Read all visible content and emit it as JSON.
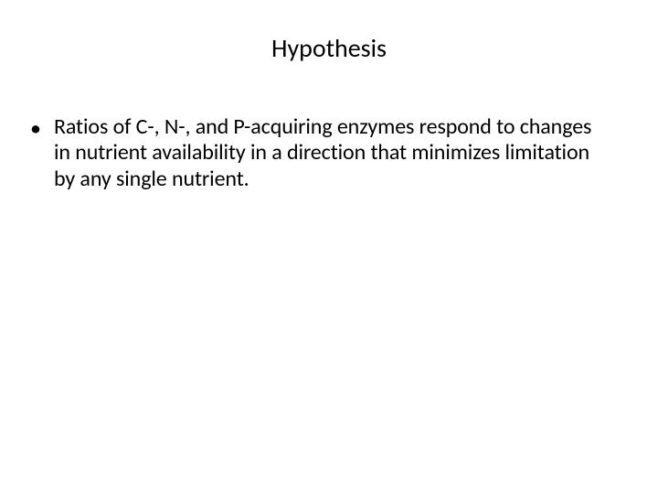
{
  "title": "Hypothesis",
  "bullets": [
    {
      "marker": "•",
      "text": "Ratios of C-, N-, and P-acquiring enzymes respond to changes in nutrient availability in a direction that minimizes limitation by any single nutrient."
    }
  ],
  "colors": {
    "background": "#ffffff",
    "text": "#000000"
  },
  "typography": {
    "title_fontsize": 28,
    "body_fontsize": 24,
    "font_family": "Calibri"
  }
}
